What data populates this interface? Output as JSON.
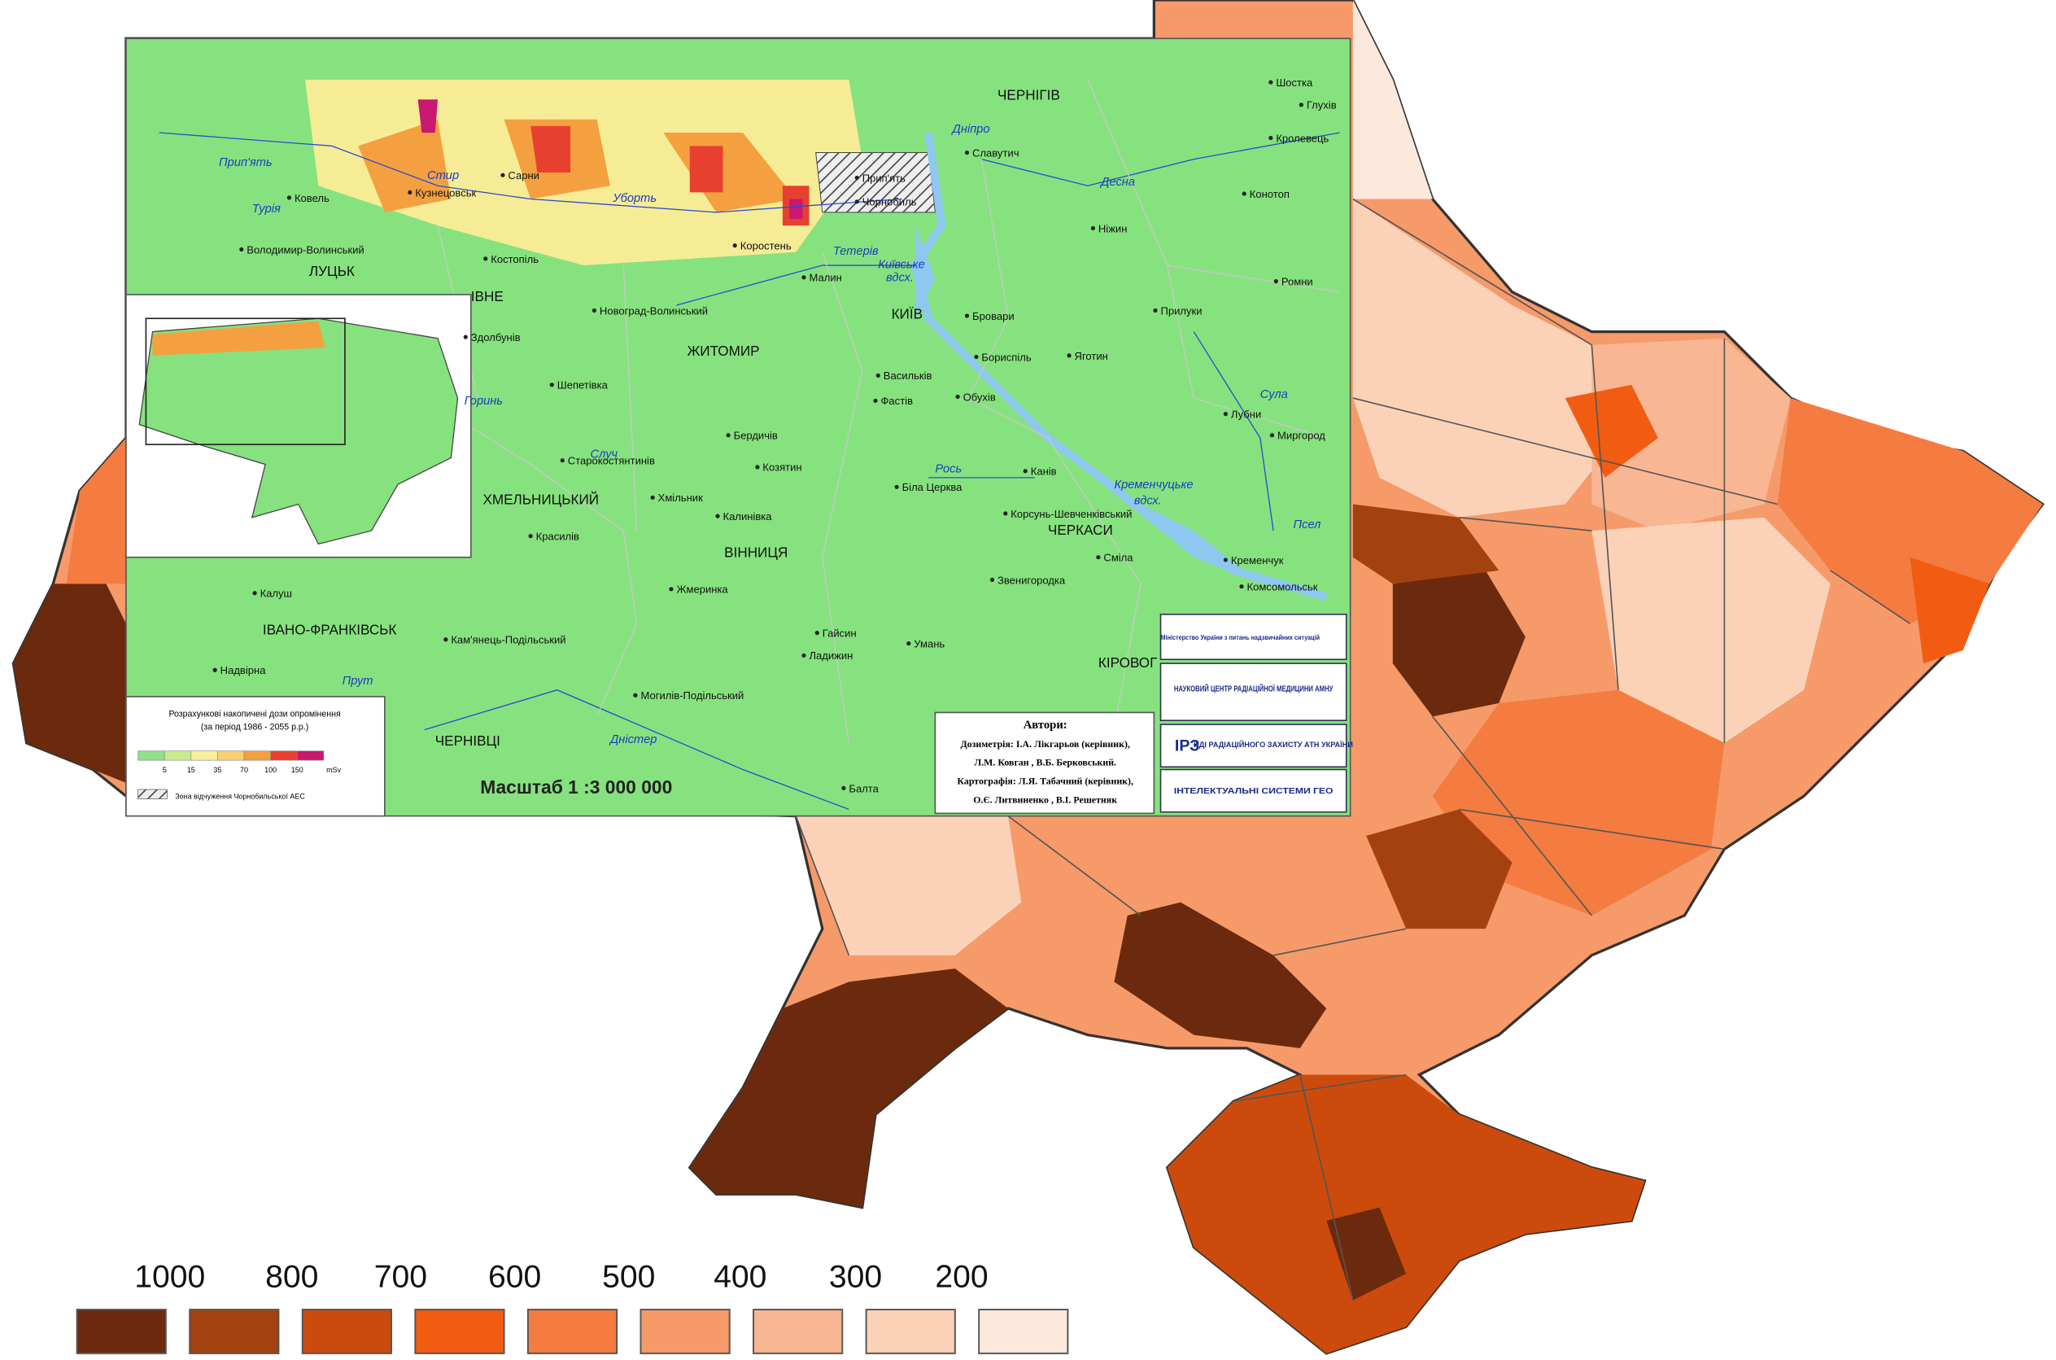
{
  "choropleth": {
    "legend": {
      "labels": [
        1000,
        800,
        700,
        600,
        500,
        400,
        300,
        200
      ],
      "colors": [
        "#6b2a0e",
        "#a3420f",
        "#cc4b0c",
        "#f25c12",
        "#f47c40",
        "#f69a6a",
        "#f8b693",
        "#fbd2b8",
        "#fde8dc"
      ]
    }
  },
  "inset_map": {
    "cities": [
      "Шостка",
      "Глухів",
      "Кролевець",
      "Конотоп",
      "Ромни",
      "Прилуки",
      "Лубни",
      "Миргород",
      "ЧЕРНІГІВ",
      "Славутич",
      "Ніжин",
      "Прип'ять",
      "Чорнобиль",
      "КИЇВ",
      "Бровари",
      "Бориспіль",
      "Яготин",
      "Васильків",
      "Фастів",
      "Обухів",
      "Біла Церква",
      "Канів",
      "Корсунь-Шевченківський",
      "ЧЕРКАСИ",
      "Сміла",
      "Звенигородка",
      "Кременчук",
      "Комсомольськ",
      "Умань",
      "Гайсин",
      "Ладижин",
      "Балта",
      "КІРОВОГ",
      "ЖИТОМИР",
      "Коростень",
      "Малин",
      "Новоград-Волинський",
      "Бердичів",
      "Козятин",
      "Хмільник",
      "Калинівка",
      "ВІННИЦЯ",
      "Жмеринка",
      "Могилів-Подільський",
      "Шепетівка",
      "Старокостянтинів",
      "ХМЕЛЬНИЦЬКИЙ",
      "Красилів",
      "Кам'янець-Подільський",
      "ЧЕРНІВЦІ",
      "ІВАНО-ФРАНКІВСЬК",
      "Калуш",
      "Надвірна",
      "Ковель",
      "Володимир-Волинський",
      "ЛУЦЬК",
      "Кузнецовськ",
      "Сарни",
      "Костопіль",
      "Здолбунів",
      "ІВНЕ"
    ],
    "rivers": [
      "Прип'ять",
      "Турія",
      "Стир",
      "Уборть",
      "Дніпро",
      "Десна",
      "Тетерів",
      "Київське",
      "вдсх.",
      "Горинь",
      "Случ",
      "Рось",
      "Кременчуцьке",
      "вдсх.",
      "Сула",
      "Псел",
      "Прут",
      "Дністер"
    ],
    "legend": {
      "title": "Розрахункові накопичені дози опромінення",
      "subtitle": "(за період 1986 - 2055 р.р.)",
      "ticks": [
        5,
        15,
        35,
        70,
        100,
        150
      ],
      "unit": "mSv",
      "colors": [
        "#8ee08a",
        "#c8ec8a",
        "#f8f09a",
        "#f8d070",
        "#f4a040",
        "#e84030",
        "#c81870"
      ],
      "zone": "Зона відчуження Чорнобильської АЕС"
    },
    "scale": "Масштаб 1 :3  000 000",
    "authors": {
      "title": "Автори:",
      "lines": [
        "Дозиметрія: І.А. Лікгарьов (керівник),",
        "Л.М. Ковган , В.Б. Берковський.",
        "Картографія: Л.Я. Табачний (керівник),",
        "О.Є. Литвиненко , В.І. Решетняк"
      ]
    },
    "logos": [
      "Міністерство України з питань надзвичайних ситуацій",
      "НАУКОВИЙ ЦЕНТР РАДІАЦІЙНОЇ МЕДИЦИНИ АМНУ",
      "ІРЗ",
      "НДІ РАДІАЦІЙНОГО ЗАХИСТУ АТН УКРАЇНИ",
      "ІНТЕЛЕКТУАЛЬНІ СИСТЕМИ ГЕО"
    ]
  }
}
